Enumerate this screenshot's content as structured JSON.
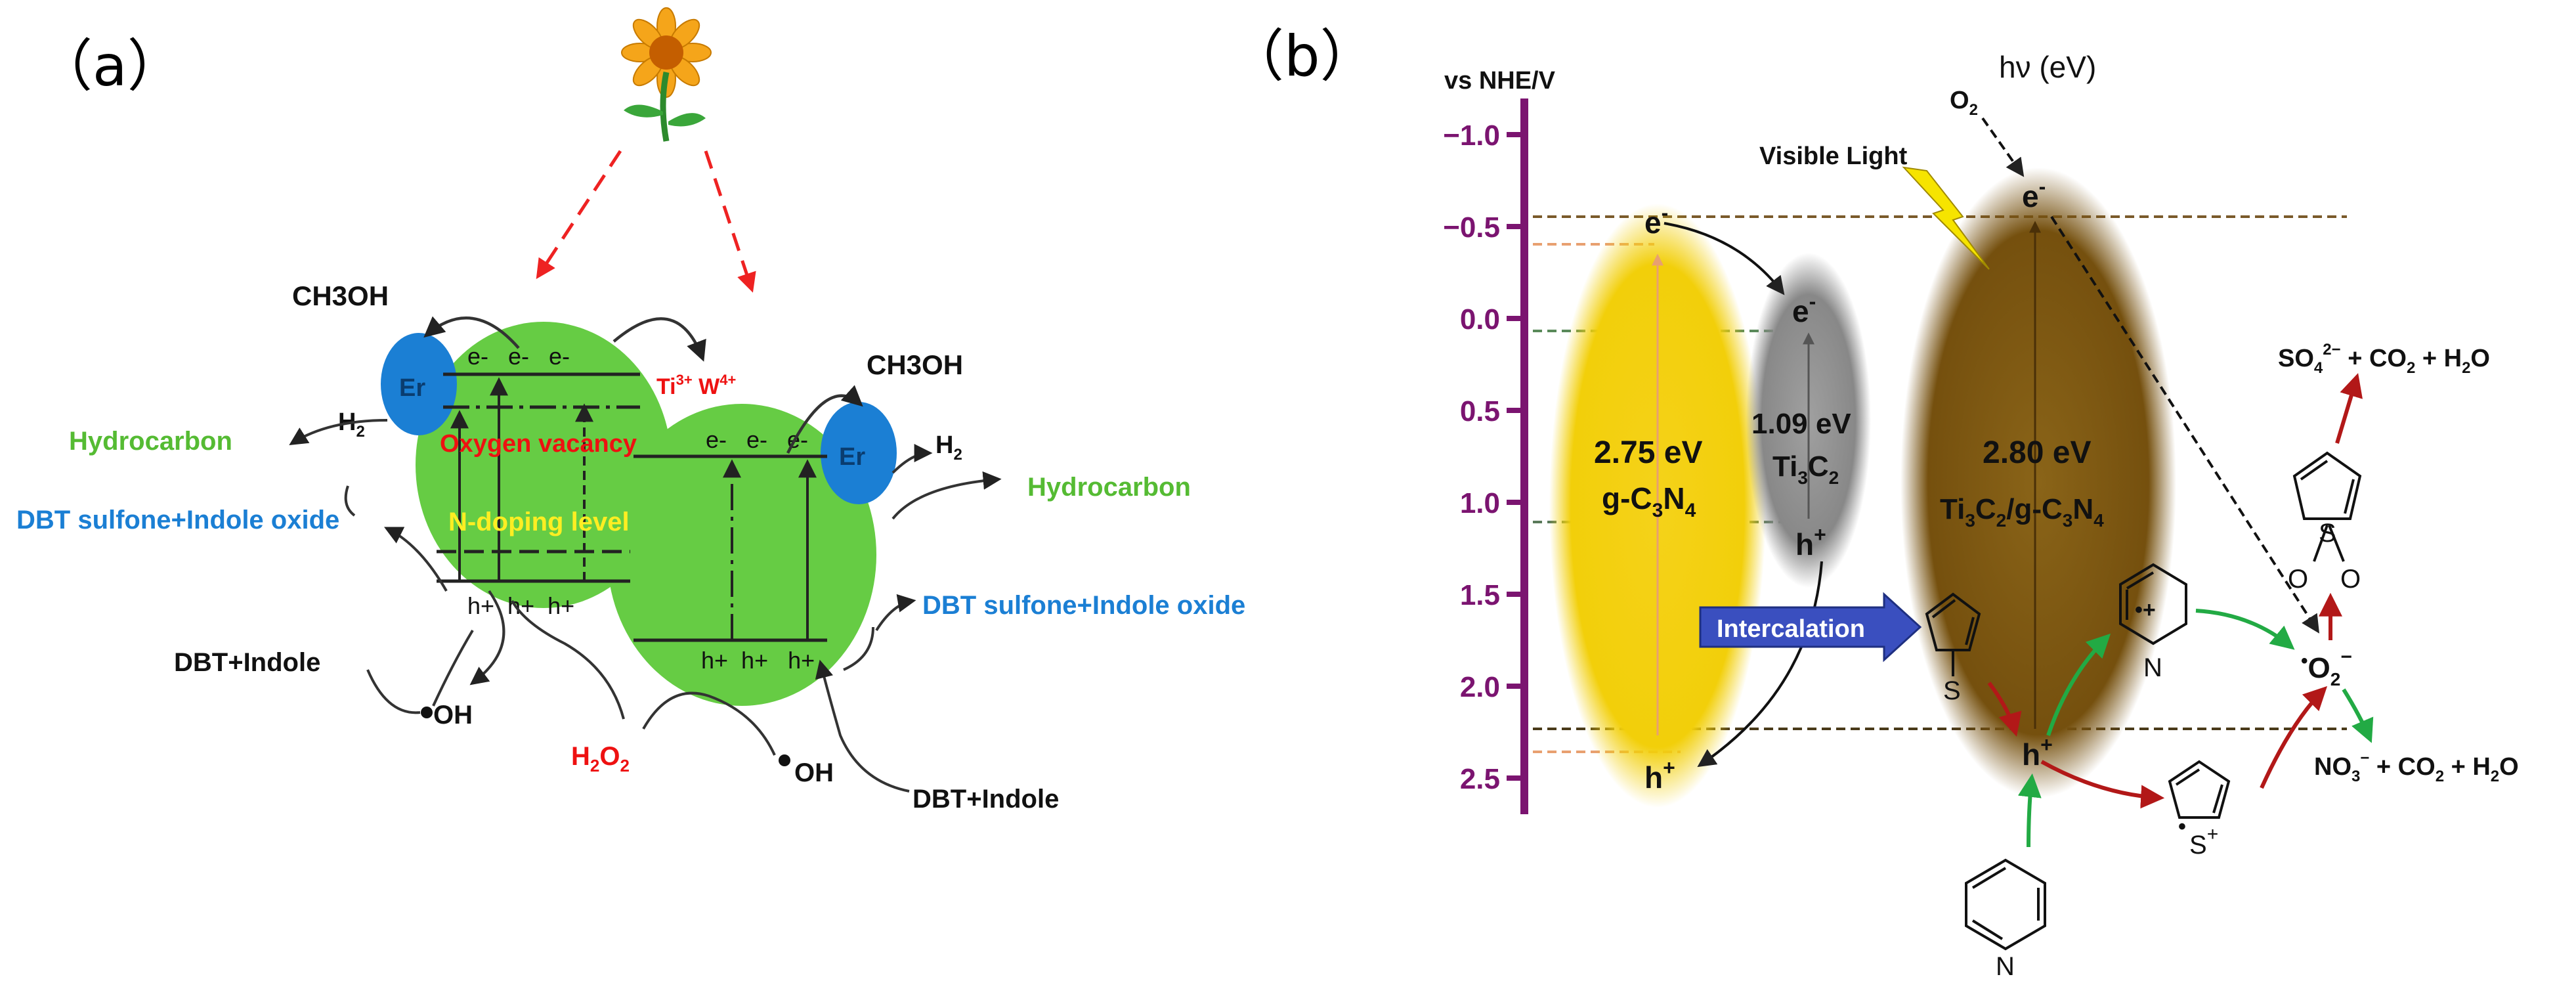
{
  "panel_a": {
    "label": "（a）",
    "top_left_product": "CH3OH",
    "top_right_product": "CH3OH",
    "h2_left": "H",
    "h2_right": "H",
    "h2_sub": "2",
    "er_left": "Er",
    "er_right": "Er",
    "hydrocarbon_left": "Hydrocarbon",
    "hydrocarbon_right": "Hydrocarbon",
    "sulfone_left": "DBT sulfone+Indole oxide",
    "sulfone_right": "DBT sulfone+Indole oxide",
    "electrons_left": "e-   e-   e-",
    "electrons_right": "e-   e-   e-",
    "holes_left": "h+  h+  h+",
    "holes_right": "h+  h+   h+",
    "oxygen_vacancy": "Oxygen vacancy",
    "n_doping": "N-doping level",
    "dopant_ti": "Ti",
    "dopant_ti_sup": "3+",
    "dopant_w": " W",
    "dopant_w_sup": "4+",
    "dbt_indole_left": "DBT+Indole",
    "dbt_indole_right": "DBT+Indole",
    "oh_left": "OH",
    "oh_right": "OH",
    "h2o2": "H",
    "h2o2_sub1": "2",
    "h2o2_o": "O",
    "h2o2_sub2": "2"
  },
  "panel_b": {
    "label": "（b）",
    "axis_title": "vs NHE/V",
    "ticks": [
      "−1.0",
      "−0.5",
      "0.0",
      "0.5",
      "1.0",
      "1.5",
      "2.0",
      "2.5"
    ],
    "tick_values": [
      -1.0,
      -0.5,
      0.0,
      0.5,
      1.0,
      1.5,
      2.0,
      2.5
    ],
    "hv": "hν (eV)",
    "o2": "O",
    "o2_sub": "2",
    "visible_light": "Visible Light",
    "gcn_gap": "2.75 eV",
    "gcn_name": "g-C",
    "gcn_sub1": "3",
    "gcn_n": "N",
    "gcn_sub2": "4",
    "ti_gap": "1.09 eV",
    "ti_name": "Ti",
    "ti_sub1": "3",
    "ti_c": "C",
    "ti_sub2": "2",
    "comp_gap": "2.80 eV",
    "comp_name_a": "Ti",
    "comp_sub1": "3",
    "comp_name_b": "C",
    "comp_sub2": "2",
    "comp_name_c": "/g-C",
    "comp_sub3": "3",
    "comp_name_d": "N",
    "comp_sub4": "4",
    "e_minus": "e",
    "minus": "-",
    "h_plus": "h",
    "plus": "+",
    "intercalation": "Intercalation",
    "so4_a": "SO",
    "so4_sub": "4",
    "so4_sup": "2−",
    "so4_b": " + CO",
    "so4_sub2": "2",
    "so4_c": " + H",
    "so4_sub3": "2",
    "so4_d": "O",
    "no3_a": "NO",
    "no3_sub": "3",
    "no3_sup": "−",
    "no3_b": " + CO",
    "no3_sub2": "2",
    "no3_c": " + H",
    "no3_sub3": "2",
    "no3_d": "O",
    "superoxide_dot": "•",
    "superoxide_o": "O",
    "superoxide_sub": "2",
    "superoxide_sup": "−",
    "atom_s": "S",
    "atom_n": "N",
    "atom_o": "O",
    "radical_plus": "•+",
    "radical_dot": "•",
    "radical_s_plus": "+"
  },
  "colors": {
    "bubble_green": "#66cc44",
    "er_blue": "#1b7fd4",
    "yellow_band": "#f2cf0a",
    "grey_band": "#8a8a8a",
    "brown_band": "#7a5410",
    "axis_purple": "#7b1470",
    "arrow_red": "#b21818",
    "arrow_green": "#22aa44",
    "label_green": "#55bb33",
    "label_blue": "#1b7fd4"
  }
}
